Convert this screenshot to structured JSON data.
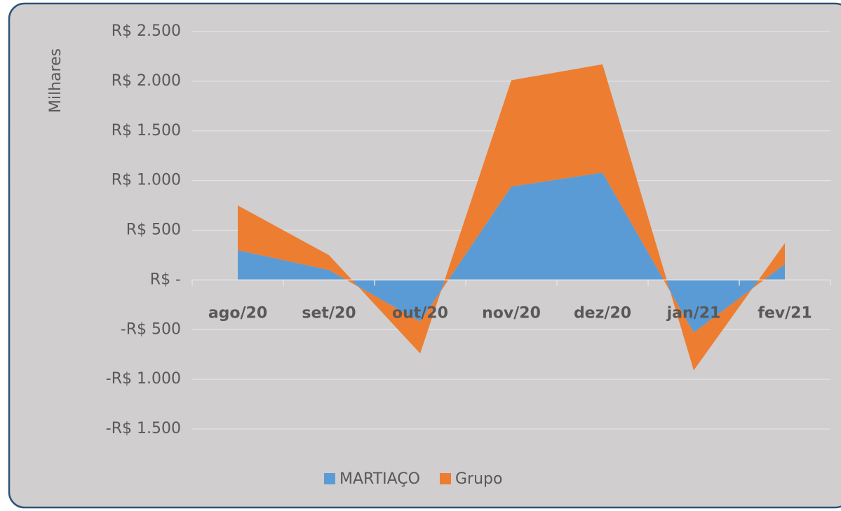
{
  "chart_data": {
    "type": "stacked_area",
    "y_axis_label": "Milhares",
    "categories": [
      "ago/20",
      "set/20",
      "out/20",
      "nov/20",
      "dez/20",
      "jan/21",
      "fev/21"
    ],
    "series": [
      {
        "name": "MARTIAÇO",
        "color": "#5b9bd5",
        "values": [
          300,
          100,
          -420,
          940,
          1080,
          -530,
          160
        ]
      },
      {
        "name": "Grupo",
        "color": "#ed7d31",
        "values": [
          450,
          150,
          -320,
          1070,
          1090,
          -380,
          210
        ]
      }
    ],
    "ylim": [
      -1500,
      2500
    ],
    "yticks": [
      {
        "value": -1500,
        "label": "-R$ 1.500"
      },
      {
        "value": -1000,
        "label": "-R$ 1.000"
      },
      {
        "value": -500,
        "label": "-R$ 500"
      },
      {
        "value": 0,
        "label": "R$ -"
      },
      {
        "value": 500,
        "label": "R$ 500"
      },
      {
        "value": 1000,
        "label": "R$ 1.000"
      },
      {
        "value": 1500,
        "label": "R$ 1.500"
      },
      {
        "value": 2000,
        "label": "R$ 2.000"
      },
      {
        "value": 2500,
        "label": "R$ 2.500"
      }
    ],
    "grid": true,
    "legend": "bottom"
  }
}
